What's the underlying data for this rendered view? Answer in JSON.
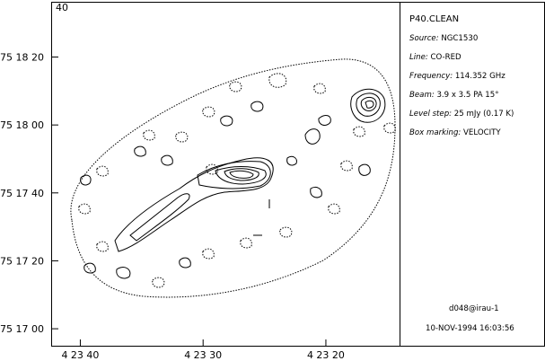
{
  "chart_data": {
    "type": "contour",
    "panel_label": "40",
    "x_ticks": [
      "4 23 40",
      "4 23 30",
      "4 23 20"
    ],
    "y_ticks": [
      "75 18 20",
      "75 18 00",
      "75 17 40",
      "75 17 20",
      "75 17 00"
    ],
    "x_tick_values_sec": [
      40,
      30,
      20
    ],
    "y_tick_values_sec": [
      80,
      60,
      40,
      20,
      0
    ],
    "xlim_sec": [
      42.3,
      14.0
    ],
    "ylim_sec": [
      -5.0,
      96.0
    ],
    "info": {
      "title": "P40.CLEAN",
      "lines": [
        {
          "key": "Source:",
          "value": "NGC1530"
        },
        {
          "key": "Line:",
          "value": "CO-RED"
        },
        {
          "key": "Frequency:",
          "value": "114.352 GHz"
        },
        {
          "key": "Beam:",
          "value": "3.9 x 3.5 PA 15°"
        },
        {
          "key": "Level step:",
          "value": "25 mJy (0.17 K)"
        },
        {
          "key": "Box marking:",
          "value": "VELOCITY"
        }
      ],
      "footer_user": "d048@irau-1",
      "footer_date": "10-NOV-1994 16:03:56"
    },
    "grid": false
  },
  "colors": {
    "line": "#000000",
    "background": "#ffffff"
  }
}
